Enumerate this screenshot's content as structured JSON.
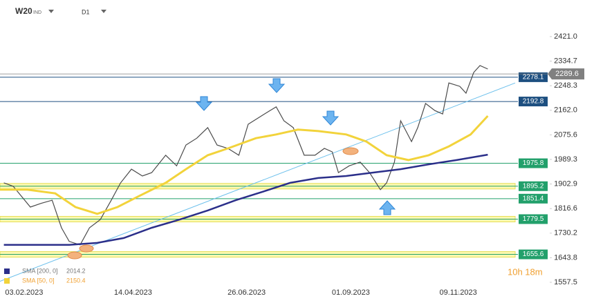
{
  "chart_data": {
    "type": "line",
    "symbol": "W20",
    "market": "IND",
    "interval": "D1",
    "timer": "10h 18m",
    "xlim": [
      -15.5,
      315.6
    ],
    "xticks": [
      {
        "value": 0,
        "label": "03.02.2023"
      },
      {
        "value": 70,
        "label": "14.04.2023"
      },
      {
        "value": 143,
        "label": "26.06.2023"
      },
      {
        "value": 210,
        "label": "01.09.2023"
      },
      {
        "value": 279,
        "label": "09.11.2023"
      }
    ],
    "ylim": [
      1518.7,
      2501.0
    ],
    "yticks": [
      {
        "value": 2421.0,
        "label": "2421.0"
      },
      2334.7,
      2248.3,
      {
        "value": 2162.0,
        "label": "2162.0"
      },
      2075.6,
      1989.3,
      1902.9,
      1816.6,
      1730.2,
      1643.8,
      1557.5
    ],
    "series": [
      {
        "name": "W20",
        "color": "#4a4a4a",
        "x": [
          -13,
          -7,
          4,
          11,
          18,
          24,
          29,
          36,
          42,
          49,
          56,
          62,
          69,
          76,
          82,
          91,
          98,
          104,
          111,
          118,
          124,
          131,
          138,
          144,
          151,
          158,
          162,
          167,
          173,
          180,
          187,
          193,
          198,
          202,
          209,
          216,
          222,
          229,
          233,
          238,
          242,
          249,
          253,
          258,
          264,
          269,
          273,
          280,
          284,
          289,
          293,
          298
        ],
        "values": [
          1907,
          1895,
          1822,
          1835,
          1846,
          1749,
          1701,
          1689,
          1749,
          1778,
          1846,
          1907,
          1955,
          1931,
          1943,
          2004,
          1967,
          2040,
          2064,
          2101,
          2040,
          2028,
          2004,
          2113,
          2137,
          2161,
          2174,
          2125,
          2101,
          2004,
          2004,
          2028,
          2016,
          1943,
          1967,
          1980,
          1943,
          1883,
          1907,
          1980,
          2125,
          2052,
          2101,
          2186,
          2161,
          2149,
          2258,
          2246,
          2222,
          2295,
          2319,
          2307
        ]
      },
      {
        "name": "SMA [200, 0]",
        "last_value": 2014.2,
        "color": "#2b2f8a",
        "x": [
          -13,
          11,
          29,
          47,
          64,
          82,
          100,
          118,
          136,
          153,
          171,
          189,
          207,
          224,
          242,
          260,
          278,
          298
        ],
        "values": [
          1689,
          1689,
          1689,
          1696,
          1713,
          1749,
          1778,
          1810,
          1846,
          1875,
          1907,
          1924,
          1931,
          1943,
          1955,
          1972,
          1987,
          2006
        ]
      },
      {
        "name": "SMA [50, 0]",
        "last_value": 2150.4,
        "color": "#f2d33b",
        "x": [
          -16,
          2,
          20,
          33,
          47,
          60,
          73,
          91,
          104,
          118,
          131,
          149,
          162,
          176,
          189,
          207,
          220,
          233,
          247,
          260,
          273,
          287,
          298
        ],
        "values": [
          1883,
          1883,
          1870,
          1822,
          1798,
          1822,
          1858,
          1907,
          1955,
          2004,
          2028,
          2064,
          2077,
          2094,
          2089,
          2077,
          2052,
          2004,
          1987,
          2004,
          2035,
          2077,
          2142
        ]
      }
    ],
    "trendline": {
      "color": "#6cc0ec",
      "x": [
        -16,
        315.6
      ],
      "values": [
        1560,
        2258
      ]
    },
    "current_price": {
      "value": 2289.6,
      "color": "#808080"
    },
    "levels": [
      {
        "value": 2278.1,
        "color": "#1d4f80",
        "band": false
      },
      {
        "value": 2192.8,
        "color": "#1d4f80",
        "band": false
      },
      {
        "value": 1975.8,
        "color": "#22a06b",
        "band": false
      },
      {
        "value": 1895.2,
        "color": "#22a06b",
        "band": true
      },
      {
        "value": 1851.4,
        "color": "#22a06b",
        "band": false
      },
      {
        "value": 1779.5,
        "color": "#22a06b",
        "band": true
      },
      {
        "value": 1655.6,
        "color": "#22a06b",
        "band": true
      }
    ]
  }
}
